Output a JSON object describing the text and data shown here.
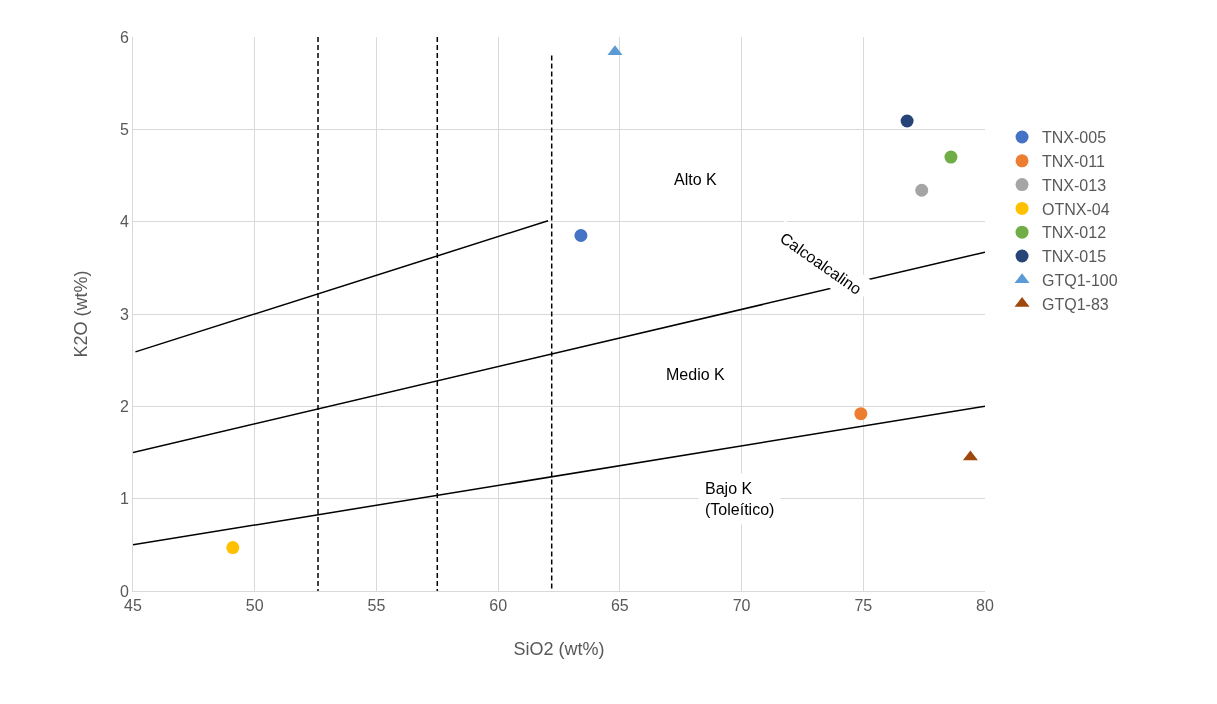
{
  "chart_data": {
    "type": "scatter",
    "xlabel": "SiO2 (wt%)",
    "ylabel": "K2O (wt%)",
    "xlim": [
      45,
      80
    ],
    "xticks": [
      45,
      50,
      55,
      60,
      65,
      70,
      75,
      80
    ],
    "ylim": [
      0,
      6
    ],
    "yticks": [
      0,
      1,
      2,
      3,
      4,
      5,
      6
    ],
    "grid": true,
    "legend": "right",
    "marker": "circle",
    "series": [
      {
        "name": "TNX-005",
        "color": "#4472c4",
        "x": [
          63.4
        ],
        "values": [
          3.85
        ]
      },
      {
        "name": "TNX-011",
        "color": "#ed7d31",
        "x": [
          74.9
        ],
        "values": [
          1.92
        ]
      },
      {
        "name": "TNX-013",
        "color": "#a5a5a5",
        "x": [
          77.4
        ],
        "values": [
          4.34
        ]
      },
      {
        "name": "OTNX-04",
        "color": "#ffc000",
        "x": [
          49.1
        ],
        "values": [
          0.47
        ]
      },
      {
        "name": "TNX-012",
        "color": "#70ad47",
        "x": [
          78.6
        ],
        "values": [
          4.7
        ]
      },
      {
        "name": "TNX-015",
        "color": "#264478",
        "x": [
          76.8
        ],
        "values": [
          5.09
        ]
      },
      {
        "name": "GTQ1-100",
        "color": "#5b9bd5",
        "x": [
          64.8
        ],
        "values": [
          5.84
        ],
        "marker": "triangle"
      },
      {
        "name": "GTQ1-83",
        "color": "#9e480e",
        "x": [
          79.4
        ],
        "values": [
          1.45
        ],
        "marker": "triangle"
      },
      {
        "type": "line",
        "color": "#000000",
        "x": [
          45.1,
          62.05
        ],
        "values": [
          2.59,
          4.01
        ],
        "line_style": "solid",
        "marker": "none"
      },
      {
        "type": "line",
        "color": "#000000",
        "x": [
          45,
          80
        ],
        "values": [
          1.5,
          3.67
        ],
        "line_style": "solid",
        "marker": "none"
      },
      {
        "type": "line",
        "color": "#000000",
        "x": [
          45,
          80
        ],
        "values": [
          0.5,
          2.0
        ],
        "line_style": "solid",
        "marker": "none"
      },
      {
        "type": "line",
        "color": "#000000",
        "x": [
          52.6,
          52.6
        ],
        "values": [
          6,
          0
        ],
        "line_style": "dashed",
        "marker": "none"
      },
      {
        "type": "line",
        "color": "#000000",
        "x": [
          57.5,
          57.5
        ],
        "values": [
          6,
          0
        ],
        "line_style": "dashed",
        "marker": "none"
      },
      {
        "type": "line",
        "color": "#000000",
        "x": [
          62.2,
          62.2
        ],
        "values": [
          5.8,
          0
        ],
        "line_style": "dashed",
        "marker": "none"
      }
    ],
    "annotations": [
      "Alto K",
      "Medio K",
      "Bajo K\n(Toleítico)",
      "Calcoalcalino"
    ]
  }
}
